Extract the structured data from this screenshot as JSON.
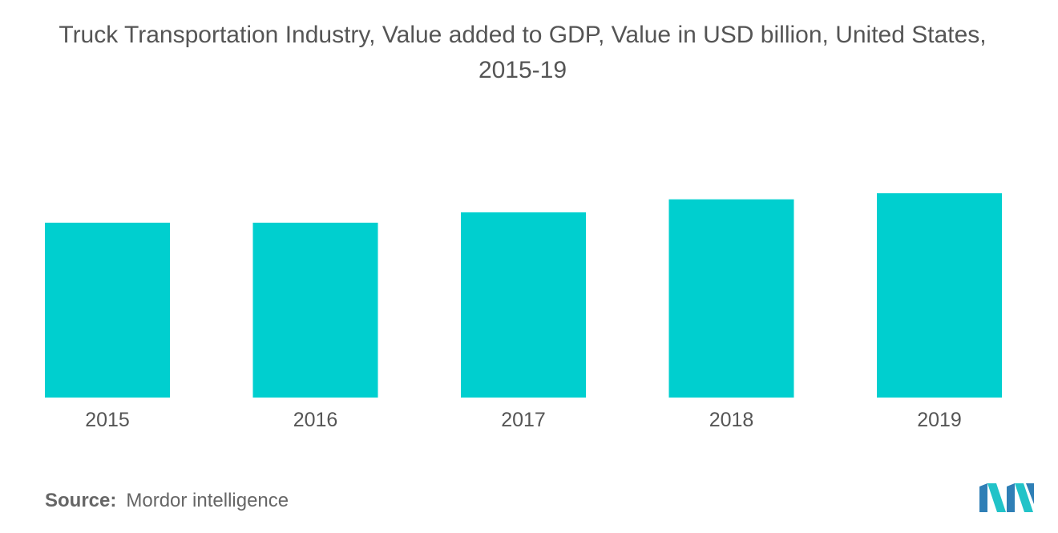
{
  "chart_data": {
    "type": "bar",
    "title_lines": [
      "Truck Transportation Industry, Value added to GDP, Value in USD billion, United States,",
      "2015-19"
    ],
    "categories": [
      "2015",
      "2016",
      "2017",
      "2018",
      "2019"
    ],
    "values": [
      202,
      202,
      214,
      229,
      236
    ],
    "ylim": [
      0,
      250
    ],
    "xlabel": "",
    "ylabel": "",
    "grid": false,
    "legend": "none",
    "bar_color": "#00CFCF"
  },
  "source": {
    "label": "Source:",
    "text": "Mordor intelligence"
  },
  "logo": {
    "name": "mordor-intelligence-logo",
    "colors": [
      "#2F7FB6",
      "#22C3C8"
    ]
  }
}
